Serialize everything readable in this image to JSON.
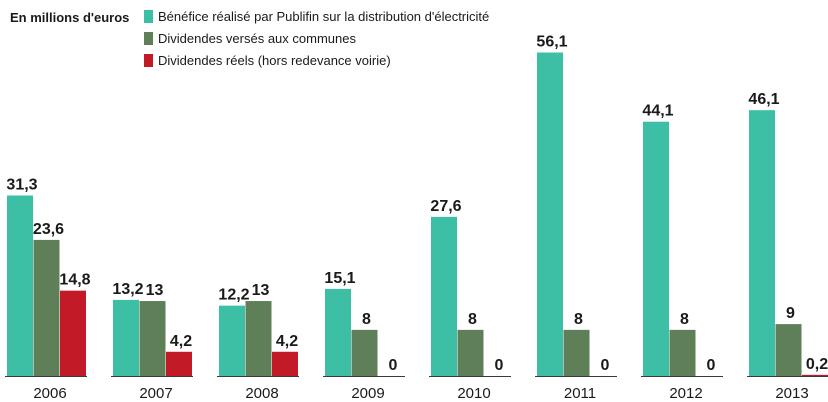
{
  "chart_data": {
    "type": "bar",
    "unit_label": "En millions d'euros",
    "categories": [
      "2006",
      "2007",
      "2008",
      "2009",
      "2010",
      "2011",
      "2012",
      "2013"
    ],
    "series": [
      {
        "name": "Bénéfice réalisé par Publifin sur la distribution d'électricité",
        "color": "#3cbfa5",
        "values": [
          31.3,
          13.2,
          12.2,
          15.1,
          27.6,
          56.1,
          44.1,
          46.1
        ],
        "labels": [
          "31,3",
          "13,2",
          "12,2",
          "15,1",
          "27,6",
          "56,1",
          "44,1",
          "46,1"
        ]
      },
      {
        "name": "Dividendes versés aux communes",
        "color": "#5f7f58",
        "values": [
          23.6,
          13,
          13,
          8,
          8,
          8,
          8,
          9
        ],
        "labels": [
          "23,6",
          "13",
          "13",
          "8",
          "8",
          "8",
          "8",
          "9"
        ]
      },
      {
        "name": "Dividendes réels (hors redevance voirie)",
        "color": "#c21a26",
        "values": [
          14.8,
          4.2,
          4.2,
          0,
          0,
          0,
          0,
          0.2
        ],
        "labels": [
          "14,8",
          "4,2",
          "4,2",
          "0",
          "0",
          "0",
          "0",
          "0,2"
        ]
      }
    ],
    "ylim": [
      0,
      60
    ],
    "legend_position": "top-left",
    "grid": false
  }
}
